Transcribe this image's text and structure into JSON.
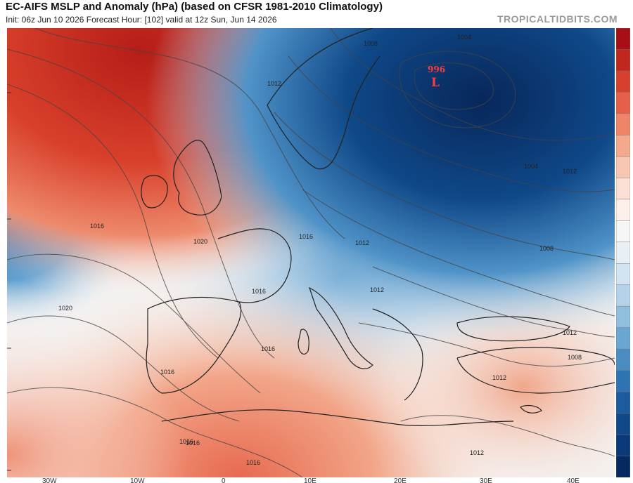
{
  "header": {
    "title": "EC-AIFS MSLP and Anomaly (hPa) (based on CFSR 1981-2010 Climatology)",
    "subtitle": "Init: 06z Jun 10 2026   Forecast Hour: [102]   valid at 12z Sun, Jun 14 2026",
    "brand": "TROPICALTIDBITS.COM"
  },
  "map": {
    "low_center": {
      "label": "L",
      "value": "996"
    },
    "isobar_labels": [
      "1016",
      "1020",
      "1016",
      "1020",
      "1016",
      "1016",
      "1016",
      "1016",
      "1012",
      "1008",
      "1004",
      "1008",
      "1004",
      "1012",
      "1012",
      "1012",
      "1008",
      "1012",
      "1016",
      "1016",
      "1012",
      "1012"
    ]
  },
  "colors": {
    "anomaly_positive": "#c0281e",
    "anomaly_negative": "#0b3a78",
    "neutral": "#f4f4f4",
    "low_marker": "#e02020"
  },
  "colorbar": {
    "palette": [
      "#a50f15",
      "#c0281e",
      "#d7402c",
      "#e5604a",
      "#ee8468",
      "#f4a88c",
      "#f8c6b2",
      "#fbdfd4",
      "#fdf0ea",
      "#f6f6f6",
      "#e8f0f6",
      "#d2e4f1",
      "#b4d3ea",
      "#8fbedf",
      "#69a6d2",
      "#4a8dc3",
      "#2f74b2",
      "#1c5c9e",
      "#10488a",
      "#0a3878",
      "#062a60"
    ]
  },
  "lon_labels": [
    "30W",
    "10W",
    "0",
    "10E",
    "20E",
    "30E",
    "40E"
  ]
}
